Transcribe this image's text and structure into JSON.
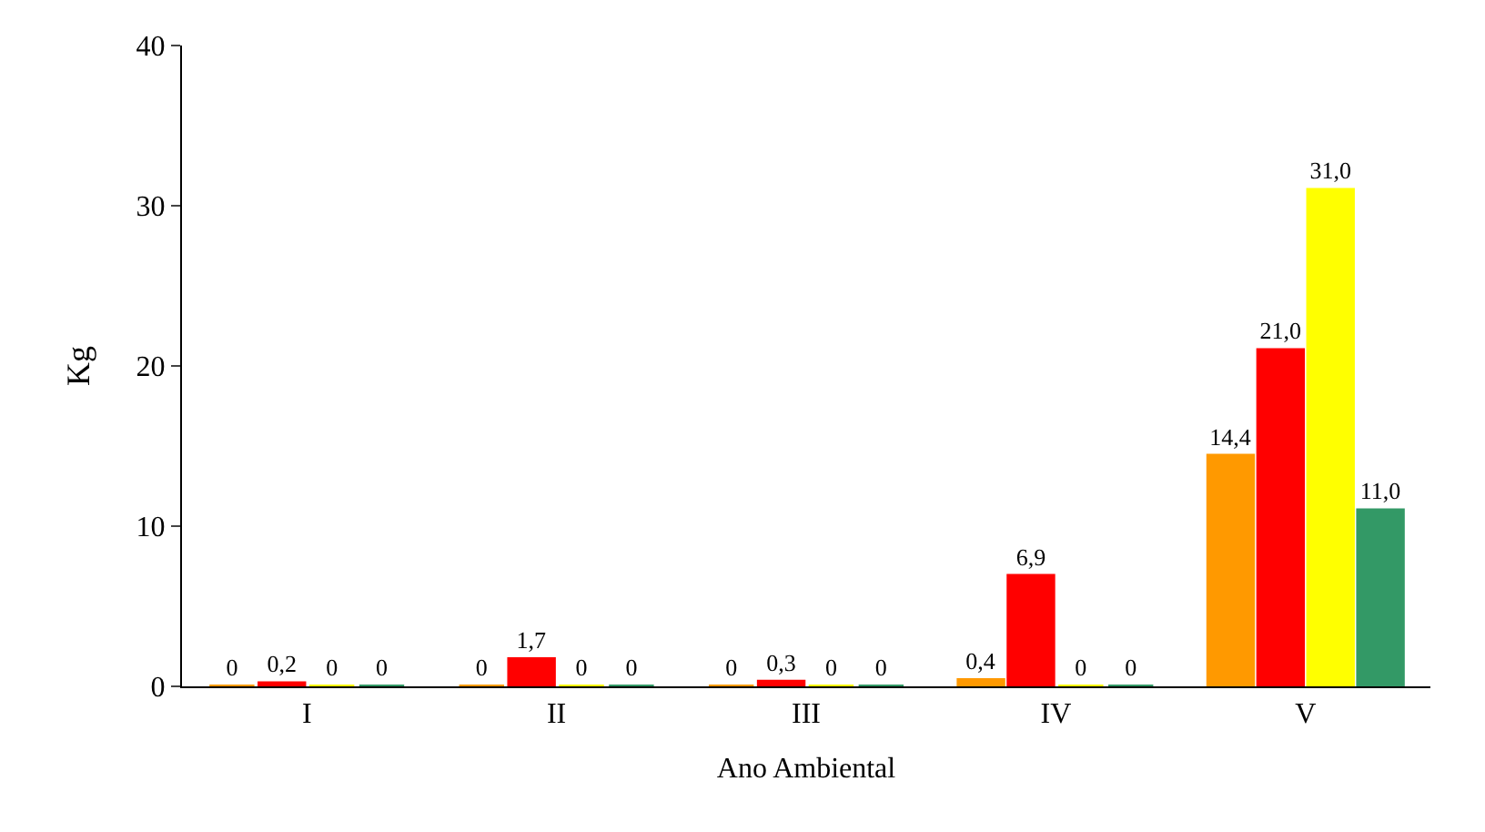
{
  "chart_data": {
    "type": "bar",
    "xlabel": "Ano Ambiental",
    "ylabel": "Kg",
    "categories": [
      "I",
      "II",
      "III",
      "IV",
      "V"
    ],
    "series": [
      {
        "color": "#ff9900",
        "values": [
          0,
          0,
          0,
          0.4,
          14.4
        ],
        "value_labels": [
          "0",
          "0",
          "0",
          "0,4",
          "14,4"
        ]
      },
      {
        "color": "#ff0000",
        "values": [
          0.2,
          1.7,
          0.3,
          6.9,
          21.0
        ],
        "value_labels": [
          "0,2",
          "1,7",
          "0,3",
          "6,9",
          "21,0"
        ]
      },
      {
        "color": "#ffff00",
        "values": [
          0,
          0,
          0,
          0,
          31.0
        ],
        "value_labels": [
          "0",
          "0",
          "0",
          "0",
          "31,0"
        ]
      },
      {
        "color": "#339966",
        "values": [
          0,
          0,
          0,
          0,
          11.0
        ],
        "value_labels": [
          "0",
          "0",
          "0",
          "0",
          "11,0"
        ]
      }
    ],
    "ylim": [
      0,
      40
    ],
    "yticks": [
      0,
      10,
      20,
      30,
      40
    ]
  }
}
